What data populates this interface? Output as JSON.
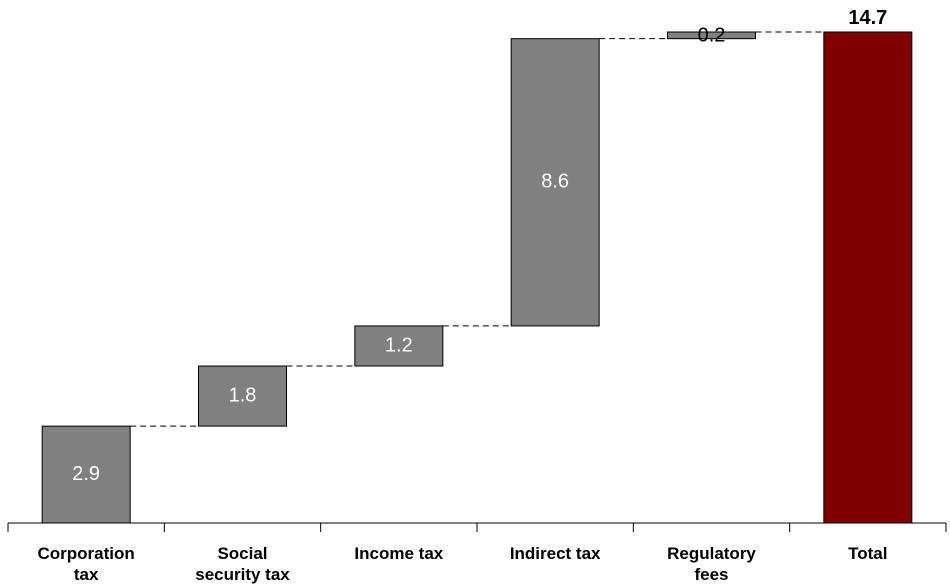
{
  "chart_data": {
    "type": "bar",
    "subtype": "waterfall",
    "title": "",
    "xlabel": "",
    "ylabel": "",
    "categories": [
      [
        "Corporation",
        "tax"
      ],
      [
        "Social",
        "security tax"
      ],
      [
        "Income tax"
      ],
      [
        "Indirect tax"
      ],
      [
        "Regulatory",
        "fees"
      ],
      [
        "Total"
      ]
    ],
    "values": [
      2.9,
      1.8,
      1.2,
      8.6,
      0.2,
      14.7
    ],
    "value_labels": [
      "2.9",
      "1.8",
      "1.2",
      "8.6",
      "0.2",
      "14.7"
    ],
    "is_total": [
      false,
      false,
      false,
      false,
      false,
      true
    ],
    "ylim": [
      0,
      14.7
    ],
    "grid": false,
    "legend": "none",
    "colors": {
      "increment": "#808080",
      "total": "#800000",
      "outline": "#000000"
    }
  }
}
